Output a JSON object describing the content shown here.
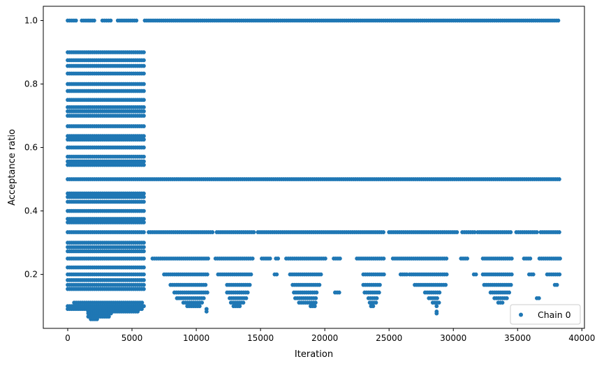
{
  "chart_data": {
    "type": "scatter",
    "xlabel": "Iteration",
    "ylabel": "Acceptance ratio",
    "xlim": [
      -1900,
      40200
    ],
    "ylim": [
      0.03,
      1.045
    ],
    "xticks": [
      0,
      5000,
      10000,
      15000,
      20000,
      25000,
      30000,
      35000,
      40000
    ],
    "xtick_labels": [
      "0",
      "5000",
      "10000",
      "15000",
      "20000",
      "25000",
      "30000",
      "35000",
      "40000"
    ],
    "yticks": [
      0.2,
      0.4,
      0.6,
      0.8,
      1.0
    ],
    "ytick_labels": [
      "0.2",
      "0.4",
      "0.6",
      "0.8",
      "1.0"
    ],
    "legend_position": "lower-right",
    "series": [
      {
        "name": "Chain 0",
        "color": "#1f77b4",
        "marker": "circle",
        "x_range": [
          0,
          38300
        ],
        "levels": [
          {
            "y": 1.0,
            "x": [
              [
                0,
                700
              ],
              [
                1100,
                2200
              ],
              [
                2700,
                3400
              ],
              [
                3900,
                5400
              ],
              [
                6000,
                38300
              ]
            ]
          },
          {
            "y": 0.9,
            "x": [
              [
                0,
                6000
              ]
            ]
          },
          {
            "y": 0.875,
            "x": [
              [
                0,
                6000
              ]
            ]
          },
          {
            "y": 0.857,
            "x": [
              [
                0,
                6000
              ]
            ]
          },
          {
            "y": 0.833,
            "x": [
              [
                0,
                6000
              ]
            ]
          },
          {
            "y": 0.8,
            "x": [
              [
                0,
                6000
              ]
            ]
          },
          {
            "y": 0.778,
            "x": [
              [
                0,
                6000
              ]
            ]
          },
          {
            "y": 0.75,
            "x": [
              [
                0,
                6000
              ]
            ]
          },
          {
            "y": 0.727,
            "x": [
              [
                0,
                6000
              ]
            ]
          },
          {
            "y": 0.714,
            "x": [
              [
                0,
                6000
              ]
            ]
          },
          {
            "y": 0.7,
            "x": [
              [
                0,
                6000
              ]
            ]
          },
          {
            "y": 0.667,
            "x": [
              [
                0,
                6000
              ]
            ]
          },
          {
            "y": 0.636,
            "x": [
              [
                0,
                6000
              ]
            ]
          },
          {
            "y": 0.625,
            "x": [
              [
                0,
                6000
              ]
            ]
          },
          {
            "y": 0.6,
            "x": [
              [
                0,
                6000
              ]
            ]
          },
          {
            "y": 0.571,
            "x": [
              [
                0,
                6000
              ]
            ]
          },
          {
            "y": 0.556,
            "x": [
              [
                0,
                6000
              ]
            ]
          },
          {
            "y": 0.545,
            "x": [
              [
                0,
                6000
              ]
            ]
          },
          {
            "y": 0.5,
            "x": [
              [
                0,
                38300
              ]
            ]
          },
          {
            "y": 0.455,
            "x": [
              [
                0,
                6000
              ]
            ]
          },
          {
            "y": 0.444,
            "x": [
              [
                0,
                6000
              ]
            ]
          },
          {
            "y": 0.429,
            "x": [
              [
                0,
                6000
              ]
            ]
          },
          {
            "y": 0.4,
            "x": [
              [
                0,
                6000
              ]
            ]
          },
          {
            "y": 0.375,
            "x": [
              [
                0,
                6000
              ]
            ]
          },
          {
            "y": 0.364,
            "x": [
              [
                0,
                6000
              ]
            ]
          },
          {
            "y": 0.333,
            "x": [
              [
                0,
                6000
              ],
              [
                6300,
                11400
              ],
              [
                11600,
                14600
              ],
              [
                14800,
                24600
              ],
              [
                25000,
                30400
              ],
              [
                30700,
                31700
              ],
              [
                31900,
                34600
              ],
              [
                34900,
                36600
              ],
              [
                36800,
                38300
              ]
            ]
          },
          {
            "y": 0.3,
            "x": [
              [
                0,
                6000
              ]
            ]
          },
          {
            "y": 0.286,
            "x": [
              [
                0,
                6000
              ]
            ]
          },
          {
            "y": 0.273,
            "x": [
              [
                0,
                6000
              ]
            ]
          },
          {
            "y": 0.25,
            "x": [
              [
                0,
                6000
              ],
              [
                6600,
                11000
              ],
              [
                11500,
                14500
              ],
              [
                15100,
                15800
              ],
              [
                16200,
                16500
              ],
              [
                17000,
                20100
              ],
              [
                20700,
                21200
              ],
              [
                22500,
                24600
              ],
              [
                25300,
                29600
              ],
              [
                30600,
                31200
              ],
              [
                32300,
                34600
              ],
              [
                35500,
                36000
              ],
              [
                36700,
                38300
              ]
            ]
          },
          {
            "y": 0.222,
            "x": [
              [
                0,
                6000
              ]
            ]
          },
          {
            "y": 0.2,
            "x": [
              [
                0,
                6000
              ],
              [
                7500,
                11000
              ],
              [
                11700,
                14400
              ],
              [
                16100,
                16400
              ],
              [
                17300,
                19700
              ],
              [
                23000,
                24600
              ],
              [
                25900,
                26400
              ],
              [
                26600,
                29500
              ],
              [
                31600,
                31900
              ],
              [
                32300,
                34600
              ],
              [
                35900,
                36300
              ],
              [
                37300,
                38300
              ]
            ]
          },
          {
            "y": 0.182,
            "x": [
              [
                0,
                6000
              ]
            ]
          },
          {
            "y": 0.167,
            "x": [
              [
                0,
                6000
              ],
              [
                8000,
                10800
              ],
              [
                12400,
                14300
              ],
              [
                17500,
                19600
              ],
              [
                23000,
                24400
              ],
              [
                27000,
                29400
              ],
              [
                32400,
                34500
              ],
              [
                37900,
                38200
              ]
            ]
          },
          {
            "y": 0.154,
            "x": [
              [
                0,
                6000
              ]
            ]
          },
          {
            "y": 0.143,
            "x": [
              [
                8300,
                10900
              ],
              [
                12400,
                14100
              ],
              [
                17600,
                19500
              ],
              [
                20800,
                21200
              ],
              [
                23100,
                24300
              ],
              [
                27800,
                29000
              ],
              [
                32900,
                34400
              ]
            ]
          },
          {
            "y": 0.125,
            "x": [
              [
                8500,
                10700
              ],
              [
                12600,
                13900
              ],
              [
                17700,
                19400
              ],
              [
                23400,
                24100
              ],
              [
                28100,
                28800
              ],
              [
                33200,
                34300
              ],
              [
                36500,
                36700
              ]
            ]
          },
          {
            "y": 0.111,
            "x": [
              [
                500,
                5800
              ],
              [
                9000,
                10500
              ],
              [
                12700,
                13700
              ],
              [
                18000,
                19300
              ],
              [
                23500,
                24000
              ],
              [
                28400,
                28900
              ],
              [
                33500,
                33900
              ]
            ]
          },
          {
            "y": 0.1,
            "x": [
              [
                0,
                6000
              ],
              [
                9300,
                10300
              ],
              [
                12900,
                13400
              ],
              [
                18900,
                19300
              ],
              [
                23600,
                23800
              ],
              [
                28700,
                28800
              ]
            ]
          },
          {
            "y": 0.091,
            "x": [
              [
                0,
                5900
              ],
              [
                10800,
                10950
              ]
            ]
          },
          {
            "y": 0.083,
            "x": [
              [
                1600,
                5500
              ],
              [
                10800,
                10950
              ],
              [
                28700,
                28850
              ]
            ]
          },
          {
            "y": 0.077,
            "x": [
              [
                1600,
                3500
              ],
              [
                28700,
                28800
              ]
            ]
          },
          {
            "y": 0.067,
            "x": [
              [
                1600,
                3300
              ]
            ]
          },
          {
            "y": 0.059,
            "x": [
              [
                1800,
                2300
              ]
            ]
          }
        ]
      }
    ]
  }
}
